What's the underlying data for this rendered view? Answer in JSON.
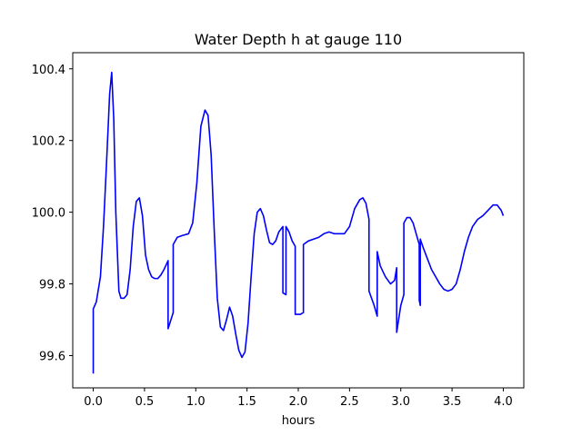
{
  "chart_data": {
    "type": "line",
    "title": "Water Depth h at gauge 110",
    "xlabel": "hours",
    "ylabel": "",
    "xlim": [
      -0.2,
      4.2
    ],
    "ylim": [
      99.51,
      100.445
    ],
    "xticks": [
      0.0,
      0.5,
      1.0,
      1.5,
      2.0,
      2.5,
      3.0,
      3.5,
      4.0
    ],
    "xtick_labels": [
      "0.0",
      "0.5",
      "1.0",
      "1.5",
      "2.0",
      "2.5",
      "3.0",
      "3.5",
      "4.0"
    ],
    "yticks": [
      99.6,
      99.8,
      100.0,
      100.2,
      100.4
    ],
    "ytick_labels": [
      "99.6",
      "99.8",
      "100.0",
      "100.2",
      "100.4"
    ],
    "grid": false,
    "colors": {
      "line": "#0000ff"
    },
    "series": [
      {
        "x": [
          0.0,
          0.0,
          0.03,
          0.07,
          0.1,
          0.13,
          0.16,
          0.18,
          0.2,
          0.22,
          0.25,
          0.27,
          0.3,
          0.33,
          0.36,
          0.39,
          0.42,
          0.45,
          0.48,
          0.51,
          0.54,
          0.57,
          0.6,
          0.63,
          0.66,
          0.69,
          0.73,
          0.73,
          0.78,
          0.78,
          0.82,
          0.87,
          0.93,
          0.97,
          1.01,
          1.05,
          1.09,
          1.12,
          1.15,
          1.18,
          1.21,
          1.24,
          1.27,
          1.3,
          1.33,
          1.36,
          1.39,
          1.42,
          1.45,
          1.48,
          1.51,
          1.54,
          1.57,
          1.6,
          1.63,
          1.66,
          1.69,
          1.72,
          1.75,
          1.78,
          1.81,
          1.85,
          1.85,
          1.88,
          1.88,
          1.91,
          1.94,
          1.97,
          1.97,
          2.02,
          2.05,
          2.05,
          2.1,
          2.15,
          2.2,
          2.25,
          2.3,
          2.35,
          2.4,
          2.45,
          2.5,
          2.55,
          2.6,
          2.63,
          2.66,
          2.69,
          2.69,
          2.74,
          2.77,
          2.77,
          2.8,
          2.85,
          2.9,
          2.94,
          2.96,
          2.96,
          3.0,
          3.03,
          3.03,
          3.06,
          3.09,
          3.12,
          3.15,
          3.18,
          3.18,
          3.19,
          3.19,
          3.22,
          3.26,
          3.3,
          3.34,
          3.38,
          3.42,
          3.46,
          3.5,
          3.54,
          3.58,
          3.62,
          3.66,
          3.7,
          3.75,
          3.8,
          3.85,
          3.9,
          3.94,
          3.98,
          4.0
        ],
        "y": [
          99.55,
          99.73,
          99.75,
          99.82,
          99.96,
          100.14,
          100.33,
          100.39,
          100.26,
          100.0,
          99.78,
          99.76,
          99.76,
          99.77,
          99.84,
          99.96,
          100.03,
          100.04,
          99.99,
          99.88,
          99.84,
          99.82,
          99.815,
          99.815,
          99.825,
          99.84,
          99.865,
          99.675,
          99.72,
          99.91,
          99.93,
          99.935,
          99.94,
          99.97,
          100.08,
          100.24,
          100.285,
          100.27,
          100.16,
          99.95,
          99.76,
          99.68,
          99.67,
          99.7,
          99.735,
          99.71,
          99.66,
          99.615,
          99.595,
          99.61,
          99.69,
          99.82,
          99.94,
          100.0,
          100.01,
          99.99,
          99.95,
          99.915,
          99.91,
          99.92,
          99.945,
          99.96,
          99.775,
          99.77,
          99.96,
          99.945,
          99.92,
          99.905,
          99.715,
          99.715,
          99.72,
          99.91,
          99.92,
          99.925,
          99.93,
          99.94,
          99.945,
          99.94,
          99.94,
          99.94,
          99.96,
          100.01,
          100.035,
          100.04,
          100.025,
          99.98,
          99.78,
          99.74,
          99.71,
          99.89,
          99.85,
          99.82,
          99.8,
          99.81,
          99.845,
          99.665,
          99.74,
          99.77,
          99.97,
          99.985,
          99.985,
          99.97,
          99.94,
          99.91,
          99.755,
          99.74,
          99.925,
          99.9,
          99.87,
          99.84,
          99.82,
          99.8,
          99.785,
          99.78,
          99.785,
          99.8,
          99.84,
          99.89,
          99.93,
          99.96,
          99.98,
          99.99,
          100.005,
          100.02,
          100.02,
          100.005,
          99.99
        ]
      }
    ]
  }
}
